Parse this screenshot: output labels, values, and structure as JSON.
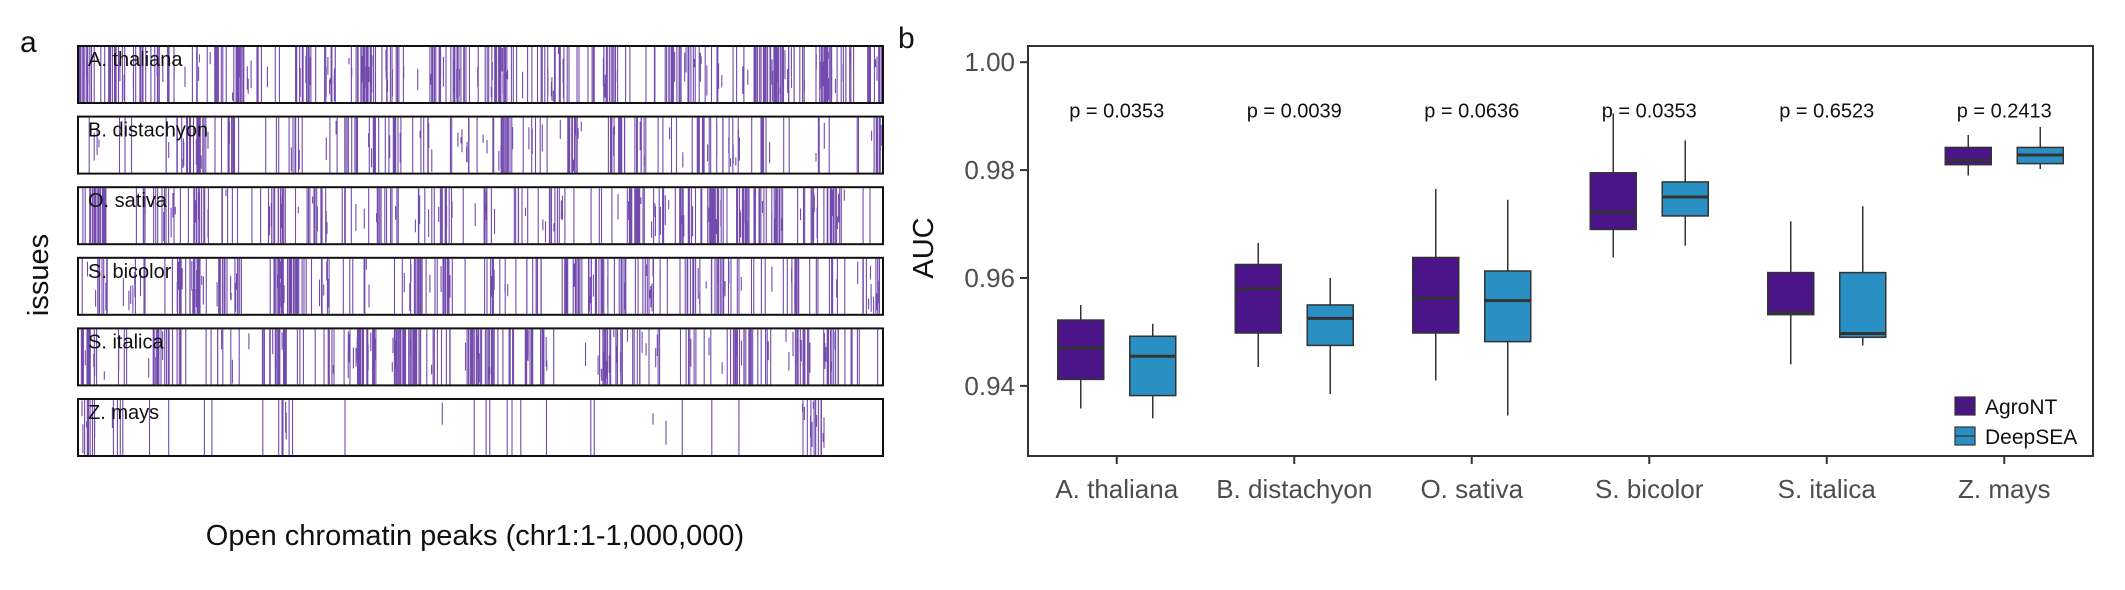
{
  "colors": {
    "agront": "#4b1589",
    "deepsea": "#2a8fc2",
    "track": "#5a2ba0",
    "axis": "#333333",
    "text": "#111111",
    "tick_text": "#4d4d4d"
  },
  "panel_a": {
    "label": "a",
    "xlabel": "Open chromatin peaks (chr1:1-1,000,000)",
    "ylabel": "issues",
    "tracks": [
      {
        "name": "A. thaliana",
        "density": 0.55,
        "seed": 11
      },
      {
        "name": "B. distachyon",
        "density": 0.3,
        "seed": 23
      },
      {
        "name": "O. sativa",
        "density": 0.42,
        "seed": 37
      },
      {
        "name": "S. bicolor",
        "density": 0.4,
        "seed": 41
      },
      {
        "name": "S. italica",
        "density": 0.45,
        "seed": 53
      },
      {
        "name": "Z. mays",
        "density": 0.08,
        "seed": 67
      }
    ]
  },
  "chart_data": {
    "type": "box",
    "title": "",
    "panel_label": "b",
    "xlabel": "",
    "ylabel": "AUC",
    "ylim": [
      0.927,
      1.003
    ],
    "yticks": [
      0.94,
      0.96,
      0.98,
      1.0
    ],
    "ytick_labels": [
      "0.94",
      "0.96",
      "0.98",
      "1.00"
    ],
    "categories": [
      "A. thaliana",
      "B. distachyon",
      "O. sativa",
      "S. bicolor",
      "S. italica",
      "Z. mays"
    ],
    "pvalues": [
      "p = 0.0353",
      "p = 0.0039",
      "p = 0.0636",
      "p = 0.0353",
      "p = 0.6523",
      "p = 0.2413"
    ],
    "pvalue_y": 0.991,
    "legend": {
      "position": "bottom-right",
      "entries": [
        "AgroNT",
        "DeepSEA"
      ]
    },
    "series": [
      {
        "name": "AgroNT",
        "boxes": [
          {
            "whislo": 0.9358,
            "q1": 0.9412,
            "med": 0.947,
            "q3": 0.9522,
            "whishi": 0.955
          },
          {
            "whislo": 0.9435,
            "q1": 0.9498,
            "med": 0.958,
            "q3": 0.9625,
            "whishi": 0.9665
          },
          {
            "whislo": 0.941,
            "q1": 0.9498,
            "med": 0.9562,
            "q3": 0.9638,
            "whishi": 0.9765
          },
          {
            "whislo": 0.9638,
            "q1": 0.969,
            "med": 0.9722,
            "q3": 0.9795,
            "whishi": 0.9905
          },
          {
            "whislo": 0.944,
            "q1": 0.9532,
            "med": 0.9535,
            "q3": 0.961,
            "whishi": 0.9705
          },
          {
            "whislo": 0.979,
            "q1": 0.981,
            "med": 0.9818,
            "q3": 0.9842,
            "whishi": 0.9865
          }
        ]
      },
      {
        "name": "DeepSEA",
        "boxes": [
          {
            "whislo": 0.934,
            "q1": 0.9382,
            "med": 0.9455,
            "q3": 0.9492,
            "whishi": 0.9515
          },
          {
            "whislo": 0.9385,
            "q1": 0.9475,
            "med": 0.9525,
            "q3": 0.955,
            "whishi": 0.96
          },
          {
            "whislo": 0.9345,
            "q1": 0.9482,
            "med": 0.9558,
            "q3": 0.9613,
            "whishi": 0.9745
          },
          {
            "whislo": 0.966,
            "q1": 0.9715,
            "med": 0.975,
            "q3": 0.9778,
            "whishi": 0.9855
          },
          {
            "whislo": 0.9475,
            "q1": 0.949,
            "med": 0.9497,
            "q3": 0.961,
            "whishi": 0.9733
          },
          {
            "whislo": 0.9802,
            "q1": 0.9812,
            "med": 0.9828,
            "q3": 0.9842,
            "whishi": 0.988
          }
        ]
      }
    ]
  }
}
